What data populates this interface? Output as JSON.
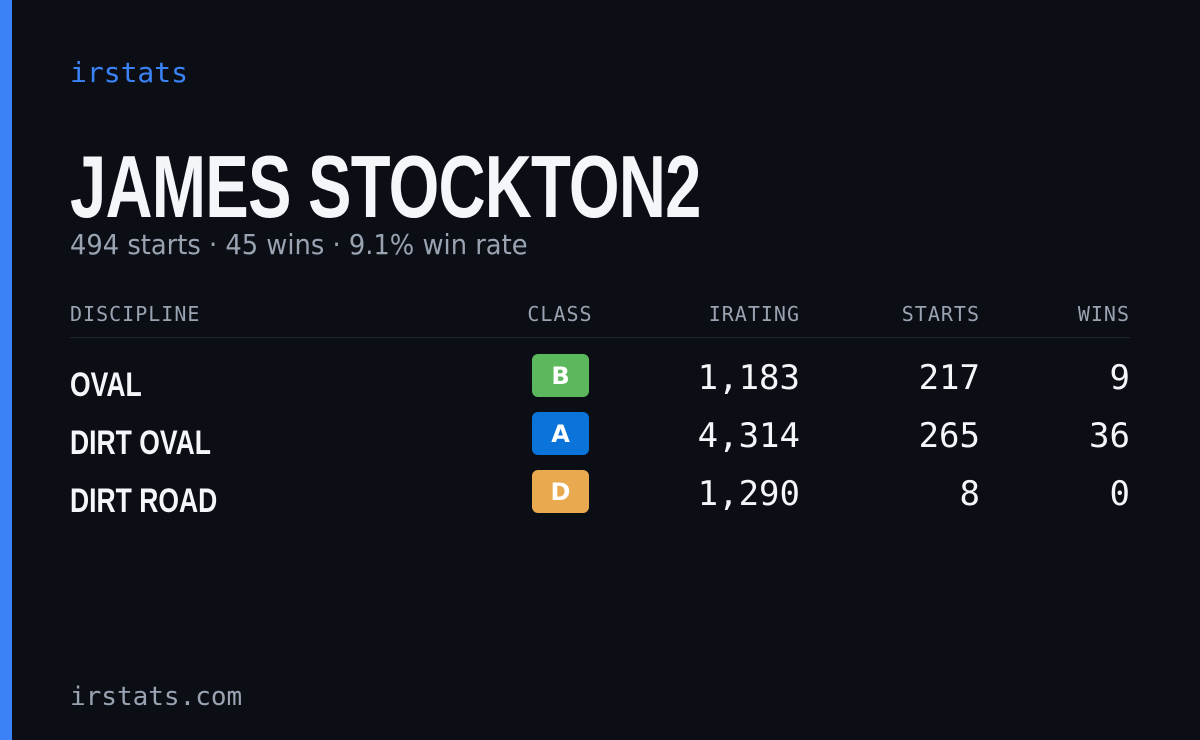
{
  "brand": "irstats",
  "driver": {
    "name": "JAMES STOCKTON2",
    "summary": "494 starts · 45 wins · 9.1% win rate"
  },
  "table": {
    "headers": [
      "DISCIPLINE",
      "CLASS",
      "IRATING",
      "STARTS",
      "WINS"
    ],
    "rows": [
      {
        "discipline": "OVAL",
        "class": "B",
        "class_color": "#5cb85c",
        "irating": "1,183",
        "starts": 217,
        "wins": 9
      },
      {
        "discipline": "DIRT OVAL",
        "class": "A",
        "class_color": "#0a74da",
        "irating": "4,314",
        "starts": 265,
        "wins": 36
      },
      {
        "discipline": "DIRT ROAD",
        "class": "D",
        "class_color": "#e8a94f",
        "irating": "1,290",
        "starts": 8,
        "wins": 0
      }
    ]
  },
  "footer": "irstats.com"
}
